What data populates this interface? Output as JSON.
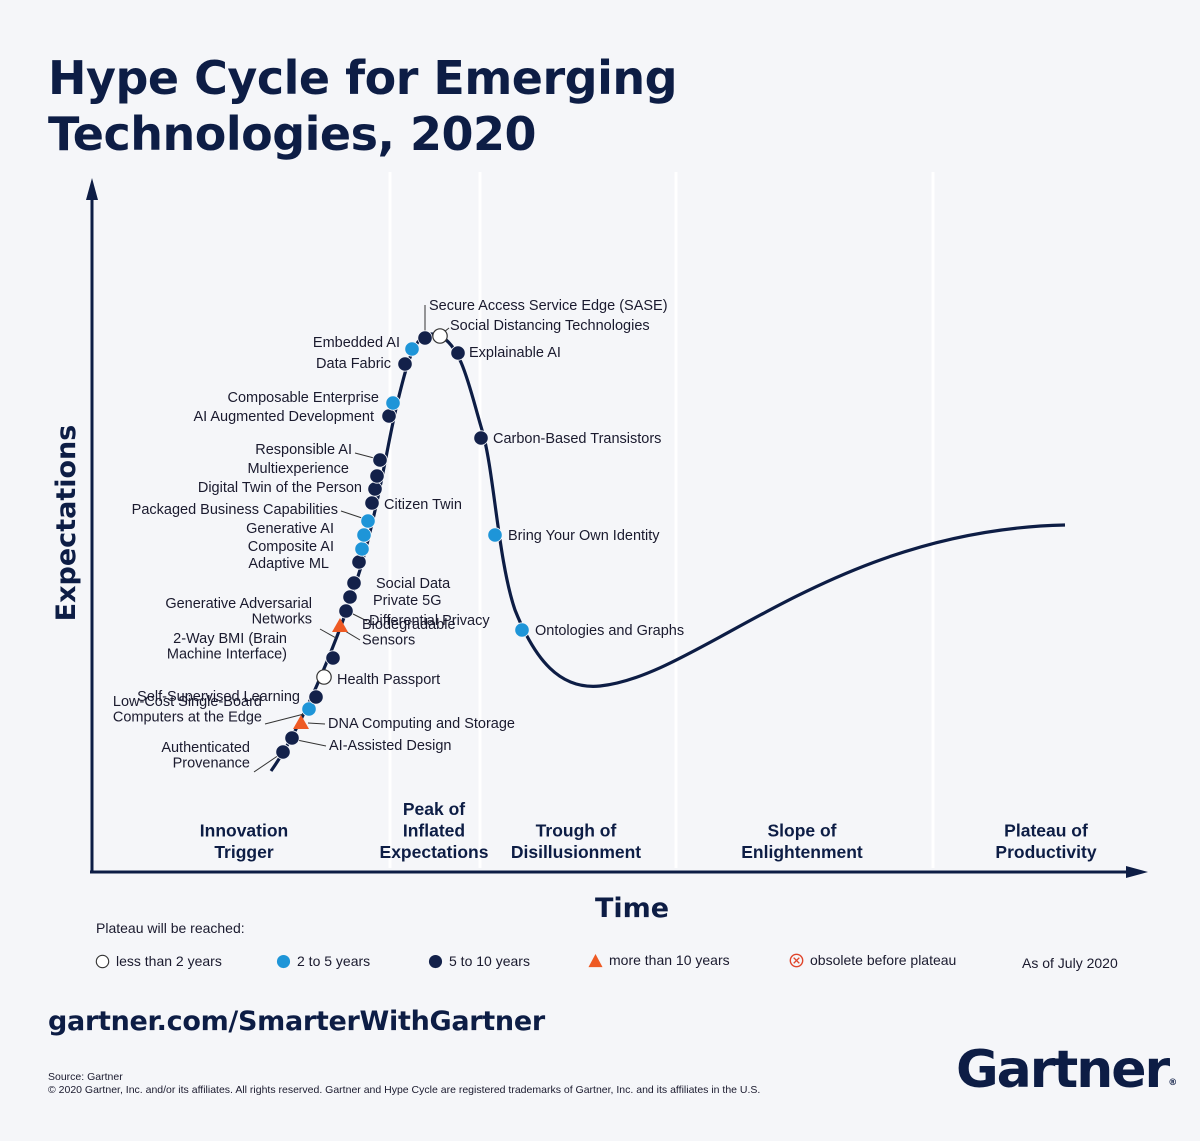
{
  "title_lines": [
    "Hype Cycle for Emerging",
    "Technologies, 2020"
  ],
  "chart_data": {
    "type": "hype-cycle",
    "title": "Hype Cycle for Emerging Technologies, 2020",
    "xlabel": "Time",
    "ylabel": "Expectations",
    "phases": [
      [
        "Innovation",
        "Trigger"
      ],
      [
        "Peak of",
        "Inflated",
        "Expectations"
      ],
      [
        "Trough of",
        "Disillusionment"
      ],
      [
        "Slope of",
        "Enlightenment"
      ],
      [
        "Plateau of",
        "Productivity"
      ]
    ],
    "legend_title": "Plateau will be reached:",
    "legend": [
      {
        "key": "lt2",
        "label": "less than 2 years",
        "color": "#ffffff",
        "shape": "circle"
      },
      {
        "key": "2to5",
        "label": "2 to 5 years",
        "color": "#1e95d8",
        "shape": "circle"
      },
      {
        "key": "5to10",
        "label": "5 to 10 years",
        "color": "#13214a",
        "shape": "circle"
      },
      {
        "key": "gt10",
        "label": "more than 10 years",
        "color": "#ee5a24",
        "shape": "triangle"
      },
      {
        "key": "obsolete",
        "label": "obsolete before plateau",
        "color": "#e0452b",
        "shape": "x-circle"
      }
    ],
    "technologies": [
      {
        "name": [
          "Authenticated",
          "Provenance"
        ],
        "category": "5to10"
      },
      {
        "name": [
          "AI-Assisted Design"
        ],
        "category": "5to10"
      },
      {
        "name": [
          "DNA Computing and Storage"
        ],
        "category": "gt10"
      },
      {
        "name": [
          "Low-Cost Single-Board",
          "Computers at the Edge"
        ],
        "category": "2to5"
      },
      {
        "name": [
          "Self-Supervised Learning"
        ],
        "category": "5to10"
      },
      {
        "name": [
          "Health Passport"
        ],
        "category": "lt2"
      },
      {
        "name": [
          "2-Way BMI (Brain",
          "Machine Interface)"
        ],
        "category": "5to10"
      },
      {
        "name": [
          "Biodegradable",
          "Sensors"
        ],
        "category": "gt10"
      },
      {
        "name": [
          "Generative Adversarial",
          "Networks"
        ],
        "category": "5to10"
      },
      {
        "name": [
          "Differential Privacy"
        ],
        "category": "5to10"
      },
      {
        "name": [
          "Private 5G"
        ],
        "category": "5to10"
      },
      {
        "name": [
          "Social Data"
        ],
        "category": "5to10"
      },
      {
        "name": [
          "Adaptive ML"
        ],
        "category": "5to10"
      },
      {
        "name": [
          "Composite AI"
        ],
        "category": "2to5"
      },
      {
        "name": [
          "Generative AI"
        ],
        "category": "2to5"
      },
      {
        "name": [
          "Packaged Business Capabilities"
        ],
        "category": "2to5"
      },
      {
        "name": [
          "Citizen Twin"
        ],
        "category": "5to10"
      },
      {
        "name": [
          "Digital Twin of the Person"
        ],
        "category": "5to10"
      },
      {
        "name": [
          "Multiexperience"
        ],
        "category": "5to10"
      },
      {
        "name": [
          "Responsible AI"
        ],
        "category": "5to10"
      },
      {
        "name": [
          "AI Augmented Development"
        ],
        "category": "5to10"
      },
      {
        "name": [
          "Composable Enterprise"
        ],
        "category": "2to5"
      },
      {
        "name": [
          "Data Fabric"
        ],
        "category": "5to10"
      },
      {
        "name": [
          "Embedded AI"
        ],
        "category": "2to5"
      },
      {
        "name": [
          "Secure Access Service Edge (SASE)"
        ],
        "category": "5to10"
      },
      {
        "name": [
          "Social Distancing Technologies"
        ],
        "category": "lt2"
      },
      {
        "name": [
          "Explainable AI"
        ],
        "category": "5to10"
      },
      {
        "name": [
          "Carbon-Based Transistors"
        ],
        "category": "5to10"
      },
      {
        "name": [
          "Bring Your Own Identity"
        ],
        "category": "2to5"
      },
      {
        "name": [
          "Ontologies and Graphs"
        ],
        "category": "2to5"
      }
    ],
    "as_of": "As of July 2020"
  },
  "footer": {
    "url": "gartner.com/SmarterWithGartner",
    "source": "Source: Gartner",
    "copyright": "© 2020 Gartner, Inc. and/or its affiliates. All rights reserved. Gartner and Hype Cycle are registered trademarks of Gartner, Inc. and its affiliates in the U.S.",
    "logo_text": "Gartner",
    "logo_mark": "®"
  },
  "colors": {
    "navy": "#0d1d45",
    "dot_dark": "#13214a",
    "dot_blue": "#1e95d8",
    "dot_orange": "#ee5a24"
  }
}
